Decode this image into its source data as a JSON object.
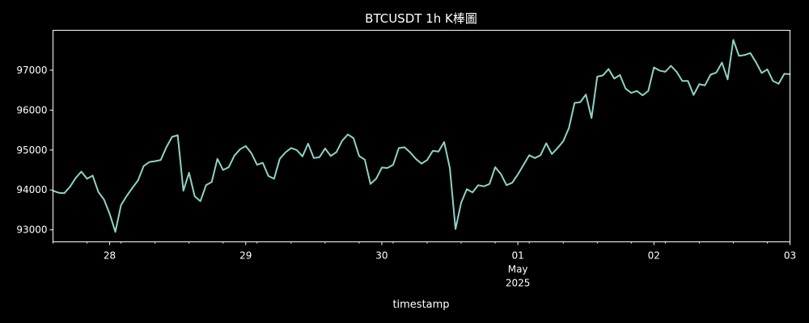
{
  "colors": {
    "background": "#000000",
    "axes": "#ffffff",
    "text": "#ffffff",
    "series": "#8dd3c7"
  },
  "chart_data": {
    "type": "line",
    "title": "BTCUSDT 1h K棒圖",
    "xlabel": "timestamp",
    "ylabel": "",
    "grid": false,
    "legend": "none",
    "x_unit": "hours",
    "xlim": [
      "2025-04-27 14:00",
      "2025-05-03 00:00"
    ],
    "ylim": [
      92700,
      98000
    ],
    "yticks": [
      93000,
      94000,
      95000,
      96000,
      97000
    ],
    "ytick_labels": [
      "93000",
      "94000",
      "95000",
      "96000",
      "97000"
    ],
    "xticks": [
      {
        "at": "2025-04-28 00:00",
        "lines": [
          "28"
        ]
      },
      {
        "at": "2025-04-29 00:00",
        "lines": [
          "29"
        ]
      },
      {
        "at": "2025-04-30 00:00",
        "lines": [
          "30"
        ]
      },
      {
        "at": "2025-05-01 00:00",
        "lines": [
          "01",
          "May",
          "2025"
        ]
      },
      {
        "at": "2025-05-02 00:00",
        "lines": [
          "02"
        ]
      },
      {
        "at": "2025-05-03 00:00",
        "lines": [
          "03"
        ]
      }
    ],
    "series": [
      {
        "start": "2025-04-27 14:00",
        "step_hours": 1,
        "values": [
          93980,
          93930,
          93920,
          94080,
          94300,
          94460,
          94280,
          94360,
          93950,
          93760,
          93400,
          92950,
          93620,
          93850,
          94050,
          94240,
          94600,
          94700,
          94720,
          94750,
          95070,
          95330,
          95370,
          93980,
          94430,
          93840,
          93720,
          94120,
          94200,
          94780,
          94500,
          94570,
          94860,
          95020,
          95100,
          94920,
          94630,
          94680,
          94350,
          94280,
          94780,
          94940,
          95050,
          95000,
          94840,
          95160,
          94800,
          94820,
          95040,
          94850,
          94950,
          95230,
          95390,
          95300,
          94850,
          94760,
          94150,
          94280,
          94560,
          94550,
          94630,
          95050,
          95070,
          94940,
          94780,
          94660,
          94750,
          94980,
          94960,
          95200,
          94550,
          93020,
          93680,
          94020,
          93940,
          94120,
          94090,
          94150,
          94570,
          94400,
          94120,
          94180,
          94390,
          94630,
          94870,
          94800,
          94870,
          95170,
          94900,
          95050,
          95220,
          95550,
          96180,
          96200,
          96390,
          95800,
          96840,
          96870,
          97030,
          96790,
          96880,
          96540,
          96430,
          96480,
          96370,
          96480,
          97070,
          96990,
          96960,
          97110,
          96960,
          96730,
          96730,
          96380,
          96650,
          96620,
          96890,
          96940,
          97190,
          96770,
          97760,
          97360,
          97380,
          97430,
          97200,
          96930,
          97020,
          96730,
          96660,
          96910,
          96900
        ]
      }
    ]
  }
}
